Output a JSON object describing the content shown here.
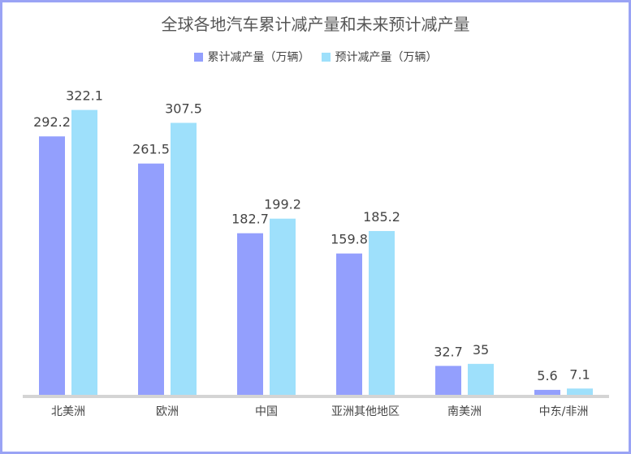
{
  "chart_data": {
    "type": "bar",
    "title": "全球各地汽车累计减产量和未来预计减产量",
    "categories": [
      "北美洲",
      "欧洲",
      "中国",
      "亚洲其他地区",
      "南美洲",
      "中东/非洲"
    ],
    "series": [
      {
        "name": "累计减产量（万辆）",
        "color": "#939ffd",
        "values": [
          292.2,
          261.5,
          182.7,
          159.8,
          32.7,
          5.6
        ],
        "labels": [
          "292.2",
          "261.5",
          "182.7",
          "159.8",
          "32.7",
          "5.6"
        ]
      },
      {
        "name": "预计减产量（万辆）",
        "color": "#9ee0fb",
        "values": [
          322.1,
          307.5,
          199.2,
          185.2,
          35,
          7.1
        ],
        "labels": [
          "322.1",
          "307.5",
          "199.2",
          "185.2",
          "35",
          "7.1"
        ]
      }
    ],
    "ylim": [
      0,
      330
    ],
    "grid": false,
    "legend": "top-center",
    "axis_color": "#d4d4d4"
  }
}
